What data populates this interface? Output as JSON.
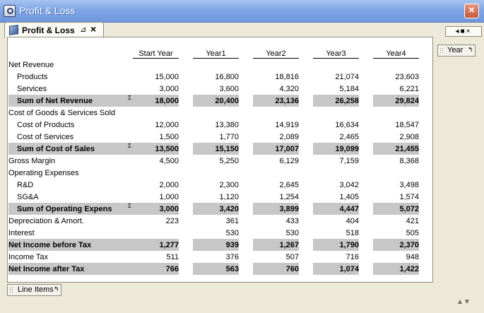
{
  "window": {
    "title": "Profit & Loss"
  },
  "tab": {
    "label": "Profit & Loss"
  },
  "year_chip": {
    "label": "Year"
  },
  "line_items_chip": {
    "label": "Line Items"
  },
  "table": {
    "columns": [
      "Start Year",
      "Year1",
      "Year2",
      "Year3",
      "Year4"
    ],
    "rows": [
      {
        "label": "Net Revenue",
        "indent": 0,
        "type": "header",
        "values": [
          "",
          "",
          "",
          "",
          ""
        ]
      },
      {
        "label": "Products",
        "indent": 1,
        "type": "item",
        "values": [
          "15,000",
          "16,800",
          "18,816",
          "21,074",
          "23,603"
        ]
      },
      {
        "label": "Services",
        "indent": 1,
        "type": "item",
        "values": [
          "3,000",
          "3,600",
          "4,320",
          "5,184",
          "6,221"
        ]
      },
      {
        "label": "Sum of Net Revenue",
        "indent": 1,
        "type": "sum",
        "sigma": "Σ",
        "values": [
          "18,000",
          "20,400",
          "23,136",
          "26,258",
          "29,824"
        ]
      },
      {
        "label": "Cost of Goods & Services Sold",
        "indent": 0,
        "type": "header",
        "values": [
          "",
          "",
          "",
          "",
          ""
        ]
      },
      {
        "label": "Cost of Products",
        "indent": 1,
        "type": "item",
        "values": [
          "12,000",
          "13,380",
          "14,919",
          "16,634",
          "18,547"
        ]
      },
      {
        "label": "Cost of Services",
        "indent": 1,
        "type": "item",
        "values": [
          "1,500",
          "1,770",
          "2,089",
          "2,465",
          "2,908"
        ]
      },
      {
        "label": "Sum of Cost of Sales",
        "indent": 1,
        "type": "sum",
        "sigma": "Σ",
        "values": [
          "13,500",
          "15,150",
          "17,007",
          "19,099",
          "21,455"
        ]
      },
      {
        "label": "Gross Margin",
        "indent": 0,
        "type": "item",
        "values": [
          "4,500",
          "5,250",
          "6,129",
          "7,159",
          "8,368"
        ]
      },
      {
        "label": "Operating Expenses",
        "indent": 0,
        "type": "header",
        "values": [
          "",
          "",
          "",
          "",
          ""
        ]
      },
      {
        "label": "R&D",
        "indent": 1,
        "type": "item",
        "values": [
          "2,000",
          "2,300",
          "2,645",
          "3,042",
          "3,498"
        ]
      },
      {
        "label": "SG&A",
        "indent": 1,
        "type": "item",
        "values": [
          "1,000",
          "1,120",
          "1,254",
          "1,405",
          "1,574"
        ]
      },
      {
        "label": "Sum of Operating Expens",
        "indent": 1,
        "type": "sum",
        "sigma": "Σ",
        "values": [
          "3,000",
          "3,420",
          "3,899",
          "4,447",
          "5,072"
        ]
      },
      {
        "label": "Depreciation & Amort.",
        "indent": 0,
        "type": "item",
        "values": [
          "223",
          "361",
          "433",
          "404",
          "421"
        ]
      },
      {
        "label": "Interest",
        "indent": 0,
        "type": "item",
        "values": [
          "",
          "530",
          "530",
          "518",
          "505"
        ]
      },
      {
        "label": "Net Income before Tax",
        "indent": 0,
        "type": "sum",
        "values": [
          "1,277",
          "939",
          "1,267",
          "1,790",
          "2,370"
        ]
      },
      {
        "label": "Income Tax",
        "indent": 0,
        "type": "item",
        "values": [
          "511",
          "376",
          "507",
          "716",
          "948"
        ]
      },
      {
        "label": "Net Income after Tax",
        "indent": 0,
        "type": "sum",
        "values": [
          "766",
          "563",
          "760",
          "1,074",
          "1,422"
        ]
      }
    ]
  },
  "icons": {
    "app": "app-icon",
    "close": "close-icon",
    "tab": "cube-icon",
    "pin": "pin-icon",
    "tab_close": "tab-close-icon",
    "grip": "grip-icon",
    "pivot": "pivot-icon",
    "scroll": "scroll-arrows-icon"
  },
  "colors": {
    "sum_row_bg": "#c7c7c7",
    "titlebar": "#7fa6e6"
  }
}
